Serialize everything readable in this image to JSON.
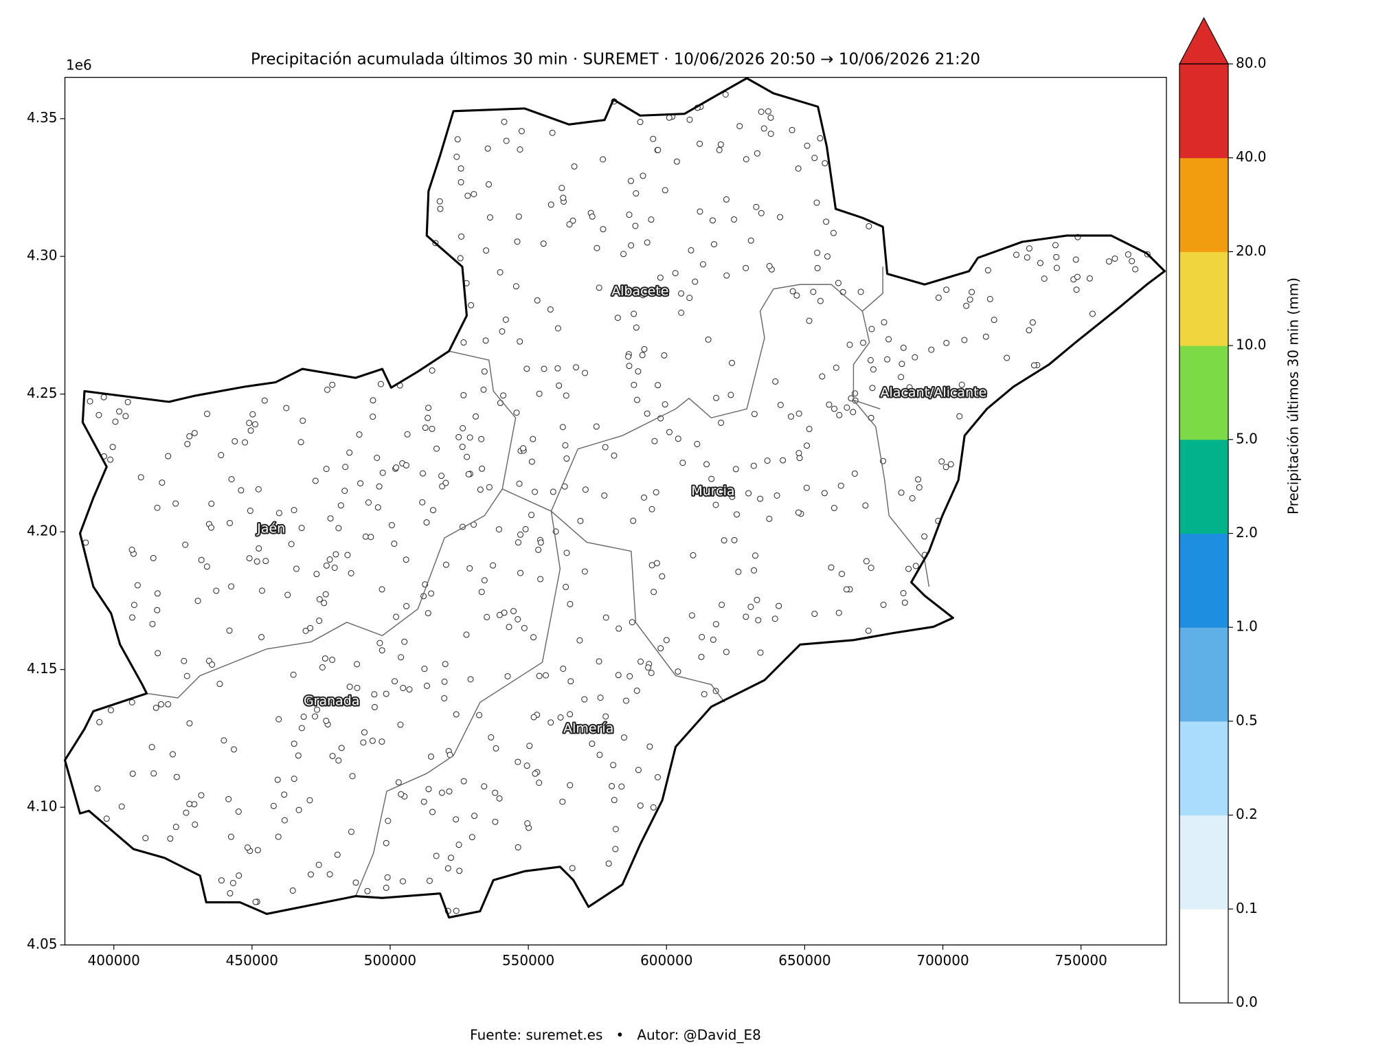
{
  "chart_data": {
    "type": "map",
    "title": "Precipitación acumulada últimos 30 min · SUREMET · 10/06/2026 20:50 → 10/06/2026 21:20",
    "y_offset_label": "1e6",
    "xlim": [
      382300,
      780900
    ],
    "ylim": [
      4.05,
      4.365
    ],
    "xticks": [
      400000,
      450000,
      500000,
      550000,
      600000,
      650000,
      700000,
      750000
    ],
    "yticks": [
      4.05,
      {
        "value": 4.1,
        "label": "4.10"
      },
      4.15,
      {
        "value": 4.2,
        "label": "4.20"
      },
      4.25,
      {
        "value": 4.3,
        "label": "4.30"
      },
      4.35
    ],
    "regions": [
      "Albacete",
      "Alacant/Alicante",
      "Murcia",
      "Jaén",
      "Granada",
      "Almería"
    ],
    "colorbar": {
      "label": "Precipitación últimos 30 min (mm)",
      "extend": "max",
      "bounds": [
        {
          "value": 0,
          "label": "0.0"
        },
        0.1,
        0.2,
        0.5,
        {
          "value": 1,
          "label": "1.0"
        },
        {
          "value": 2,
          "label": "2.0"
        },
        {
          "value": 5,
          "label": "5.0"
        },
        {
          "value": 10,
          "label": "10.0"
        },
        {
          "value": 20,
          "label": "20.0"
        },
        {
          "value": 40,
          "label": "40.0"
        },
        {
          "value": 80,
          "label": "80.0"
        }
      ],
      "colors": [
        "#ffffff",
        "#dff0fb",
        "#aadcfb",
        "#5fb0e6",
        "#1d8ee0",
        "#00b38b",
        "#7cda44",
        "#f1d53f",
        "#f29c0f",
        "#db2a27"
      ]
    },
    "footer": "Fuente: suremet.es   •   Autor: @David_E8"
  }
}
